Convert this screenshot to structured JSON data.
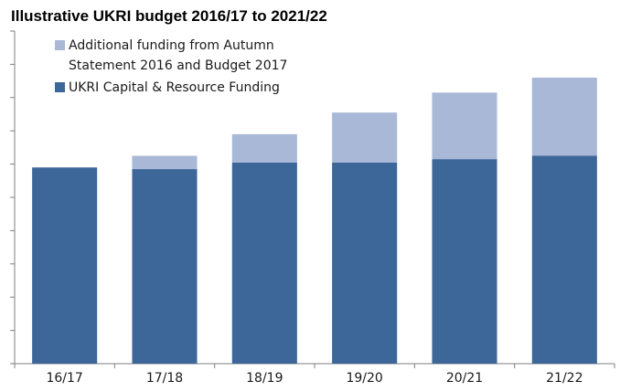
{
  "chart_data": {
    "type": "bar",
    "stacked": true,
    "title": "Illustrative UKRI budget 2016/17  to 2021/22",
    "xlabel": "",
    "ylabel": "",
    "categories": [
      "16/17",
      "17/18",
      "18/19",
      "19/20",
      "20/21",
      "21/22"
    ],
    "ylim": [
      0,
      10
    ],
    "y_ticks": 10,
    "y_tick_labels_shown": false,
    "grid": false,
    "legend_position": "top-left",
    "series": [
      {
        "name": "UKRI Capital & Resource Funding",
        "color": "#3d6699",
        "values": [
          5.9,
          5.85,
          6.05,
          6.05,
          6.15,
          6.25
        ]
      },
      {
        "name": "Additional funding from Autumn Statement 2016 and Budget 2017",
        "color": "#a8b8d6",
        "values": [
          0.0,
          0.4,
          0.85,
          1.5,
          2.0,
          2.35
        ]
      }
    ],
    "legend": [
      {
        "lines": [
          "Additional funding from Autumn",
          "Statement 2016 and Budget 2017"
        ],
        "color": "#a8b8d6"
      },
      {
        "lines": [
          "UKRI Capital & Resource Funding"
        ],
        "color": "#3d6699"
      }
    ]
  }
}
